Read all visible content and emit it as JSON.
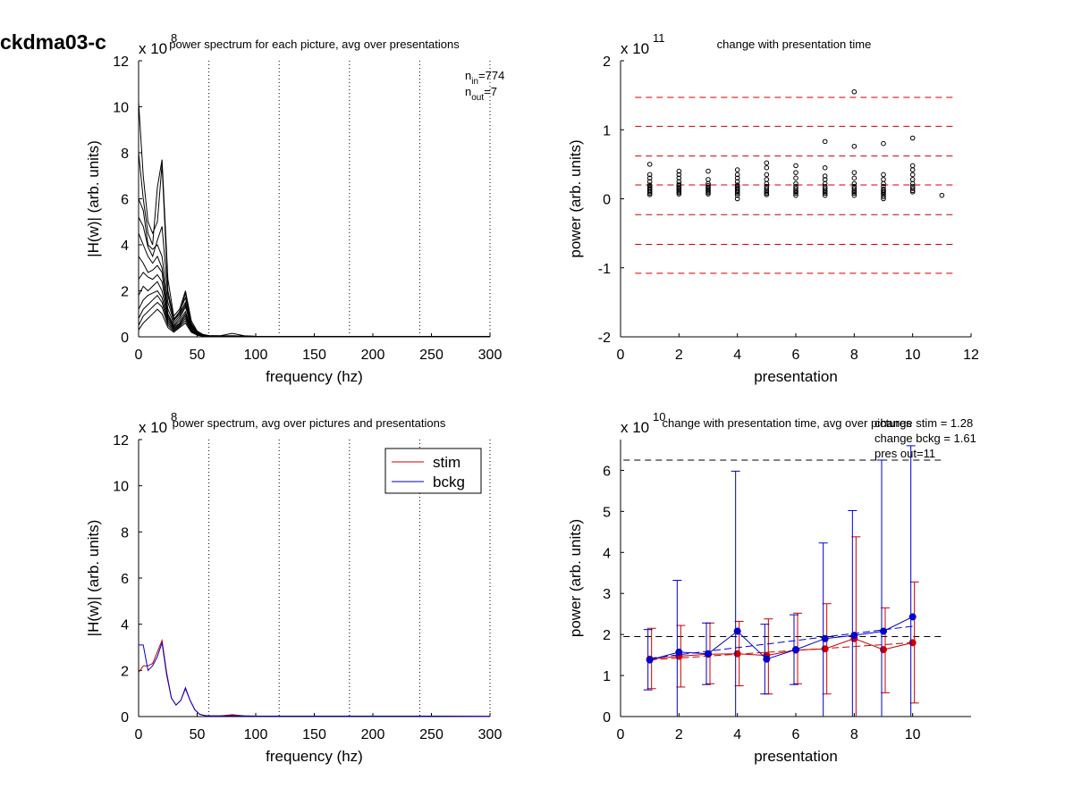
{
  "figure_title": "ckdma03-c",
  "colors": {
    "stim": "#cc0000",
    "bckg": "#0000cc",
    "black": "#000000",
    "dashed_red": "#cc0000"
  },
  "chart_data": [
    {
      "id": "p1",
      "type": "line",
      "title": "power spectrum for each picture, avg over presentations",
      "xlabel": "frequency (hz)",
      "ylabel": "|H(w)| (arb. units)",
      "xlim": [
        0,
        300
      ],
      "ylim": [
        0,
        12
      ],
      "xticks": [
        0,
        50,
        100,
        150,
        200,
        250,
        300
      ],
      "yticks": [
        0,
        2,
        4,
        6,
        8,
        10,
        12
      ],
      "exponent_base": "x 10",
      "exponent_power": "8",
      "vlines": [
        60,
        120,
        180,
        240,
        300
      ],
      "annotations": [
        {
          "main": "n",
          "sub": "in",
          "value": "=774"
        },
        {
          "main": "n",
          "sub": "out",
          "value": "=7"
        }
      ],
      "x": [
        0,
        4,
        8,
        12,
        16,
        20,
        25,
        30,
        35,
        40,
        45,
        50,
        55,
        60,
        70,
        80,
        90,
        100,
        150,
        200,
        250,
        300
      ],
      "series": [
        {
          "values": [
            10.2,
            7.0,
            5.0,
            4.5,
            5.0,
            7.5,
            2.0,
            0.8,
            1.0,
            1.9,
            0.6,
            0.2,
            0.1,
            0.05,
            0.05,
            0.15,
            0.05,
            0.02,
            0.02,
            0.02,
            0.02,
            0.01
          ]
        },
        {
          "values": [
            8.0,
            6.0,
            4.5,
            4.0,
            6.5,
            7.7,
            2.5,
            0.9,
            1.2,
            2.0,
            0.7,
            0.25,
            0.1,
            0.05,
            0.04,
            0.05,
            0.03,
            0.02,
            0.02,
            0.02,
            0.02,
            0.01
          ]
        },
        {
          "values": [
            6.0,
            5.5,
            4.0,
            3.8,
            4.0,
            3.5,
            1.5,
            0.7,
            1.0,
            1.5,
            0.5,
            0.2,
            0.08,
            0.05,
            0.04,
            0.04,
            0.03,
            0.02,
            0.02,
            0.02,
            0.02,
            0.01
          ]
        },
        {
          "values": [
            4.5,
            4.0,
            3.5,
            3.2,
            3.5,
            3.0,
            1.2,
            0.6,
            0.9,
            1.4,
            0.5,
            0.2,
            0.08,
            0.04,
            0.03,
            0.03,
            0.03,
            0.02,
            0.02,
            0.02,
            0.02,
            0.01
          ]
        },
        {
          "values": [
            3.5,
            3.2,
            2.8,
            2.9,
            3.1,
            2.8,
            1.0,
            0.5,
            0.8,
            1.3,
            0.45,
            0.18,
            0.07,
            0.04,
            0.03,
            0.03,
            0.02,
            0.02,
            0.02,
            0.02,
            0.02,
            0.01
          ]
        },
        {
          "values": [
            2.5,
            2.8,
            2.6,
            2.5,
            2.7,
            2.4,
            0.9,
            0.45,
            0.7,
            1.1,
            0.4,
            0.15,
            0.06,
            0.03,
            0.03,
            0.03,
            0.02,
            0.02,
            0.02,
            0.02,
            0.02,
            0.01
          ]
        },
        {
          "values": [
            1.8,
            2.2,
            2.0,
            2.2,
            2.4,
            2.0,
            0.8,
            0.4,
            0.6,
            1.0,
            0.35,
            0.12,
            0.05,
            0.03,
            0.03,
            0.02,
            0.02,
            0.02,
            0.02,
            0.02,
            0.02,
            0.01
          ]
        },
        {
          "values": [
            1.2,
            1.6,
            1.8,
            1.9,
            2.0,
            1.7,
            0.7,
            0.35,
            0.55,
            0.9,
            0.3,
            0.1,
            0.05,
            0.03,
            0.02,
            0.02,
            0.02,
            0.02,
            0.02,
            0.02,
            0.02,
            0.01
          ]
        },
        {
          "values": [
            0.8,
            1.2,
            1.4,
            1.6,
            1.8,
            1.5,
            0.6,
            0.3,
            0.5,
            0.8,
            0.28,
            0.1,
            0.04,
            0.02,
            0.02,
            0.02,
            0.02,
            0.02,
            0.02,
            0.02,
            0.02,
            0.01
          ]
        },
        {
          "values": [
            0.5,
            0.9,
            1.1,
            1.3,
            1.5,
            1.3,
            0.5,
            0.25,
            0.45,
            0.7,
            0.25,
            0.08,
            0.04,
            0.02,
            0.02,
            0.02,
            0.02,
            0.02,
            0.02,
            0.02,
            0.02,
            0.01
          ]
        },
        {
          "values": [
            0.3,
            0.6,
            0.8,
            1.0,
            1.2,
            1.0,
            0.4,
            0.2,
            0.4,
            0.6,
            0.2,
            0.07,
            0.03,
            0.02,
            0.02,
            0.02,
            0.02,
            0.02,
            0.02,
            0.02,
            0.02,
            0.01
          ]
        },
        {
          "values": [
            5.2,
            4.8,
            3.9,
            3.5,
            4.2,
            4.8,
            1.8,
            0.75,
            1.1,
            1.7,
            0.55,
            0.2,
            0.09,
            0.04,
            0.04,
            0.04,
            0.03,
            0.02,
            0.02,
            0.02,
            0.02,
            0.01
          ]
        }
      ]
    },
    {
      "id": "p2",
      "type": "scatter",
      "title": "change with presentation time",
      "xlabel": "presentation",
      "ylabel": "power (arb. units)",
      "xlim": [
        0,
        12
      ],
      "ylim": [
        -2,
        2
      ],
      "xticks": [
        0,
        2,
        4,
        6,
        8,
        10,
        12
      ],
      "yticks": [
        -2,
        -1,
        0,
        1,
        2
      ],
      "exponent_base": "x 10",
      "exponent_power": "11",
      "hlines_dashed": [
        1.47,
        1.05,
        0.62,
        0.2,
        -0.23,
        -0.66,
        -1.08
      ],
      "points": [
        {
          "x": 1,
          "y": [
            0.06,
            0.08,
            0.1,
            0.12,
            0.14,
            0.16,
            0.18,
            0.2,
            0.25,
            0.3,
            0.35,
            0.5
          ]
        },
        {
          "x": 2,
          "y": [
            0.07,
            0.09,
            0.11,
            0.13,
            0.15,
            0.17,
            0.19,
            0.21,
            0.25,
            0.3,
            0.35,
            0.4
          ]
        },
        {
          "x": 3,
          "y": [
            0.07,
            0.09,
            0.11,
            0.13,
            0.15,
            0.17,
            0.19,
            0.22,
            0.28,
            0.4
          ]
        },
        {
          "x": 4,
          "y": [
            0.0,
            0.05,
            0.08,
            0.1,
            0.12,
            0.14,
            0.16,
            0.18,
            0.2,
            0.25,
            0.3,
            0.35,
            0.42
          ]
        },
        {
          "x": 5,
          "y": [
            0.06,
            0.08,
            0.1,
            0.12,
            0.15,
            0.18,
            0.22,
            0.28,
            0.35,
            0.45,
            0.52
          ]
        },
        {
          "x": 6,
          "y": [
            0.05,
            0.08,
            0.1,
            0.12,
            0.15,
            0.18,
            0.22,
            0.3,
            0.38,
            0.48
          ]
        },
        {
          "x": 7,
          "y": [
            0.05,
            0.08,
            0.1,
            0.12,
            0.15,
            0.18,
            0.22,
            0.28,
            0.33,
            0.45,
            0.83
          ]
        },
        {
          "x": 8,
          "y": [
            0.05,
            0.08,
            0.1,
            0.12,
            0.15,
            0.18,
            0.22,
            0.3,
            0.38,
            0.76,
            1.55
          ]
        },
        {
          "x": 9,
          "y": [
            0.0,
            0.03,
            0.06,
            0.08,
            0.1,
            0.12,
            0.14,
            0.18,
            0.22,
            0.28,
            0.35,
            0.8
          ]
        },
        {
          "x": 10,
          "y": [
            0.1,
            0.12,
            0.15,
            0.18,
            0.22,
            0.28,
            0.35,
            0.42,
            0.48,
            0.88
          ]
        },
        {
          "x": 11,
          "y": [
            0.05
          ]
        }
      ]
    },
    {
      "id": "p3",
      "type": "line",
      "title": "power spectrum, avg over pictures and presentations",
      "xlabel": "frequency (hz)",
      "ylabel": "|H(w)| (arb. units)",
      "xlim": [
        0,
        300
      ],
      "ylim": [
        0,
        12
      ],
      "xticks": [
        0,
        50,
        100,
        150,
        200,
        250,
        300
      ],
      "yticks": [
        0,
        2,
        4,
        6,
        8,
        10,
        12
      ],
      "exponent_base": "x 10",
      "exponent_power": "8",
      "vlines": [
        60,
        120,
        180,
        240,
        300
      ],
      "legend": {
        "position": "top-right",
        "entries": [
          "stim",
          "bckg"
        ]
      },
      "x": [
        0,
        4,
        8,
        12,
        16,
        20,
        24,
        28,
        32,
        36,
        40,
        44,
        48,
        52,
        56,
        60,
        70,
        80,
        90,
        100,
        150,
        200,
        250,
        300
      ],
      "series": [
        {
          "name": "stim",
          "values": [
            1.9,
            2.2,
            2.2,
            2.3,
            2.8,
            3.3,
            1.9,
            0.8,
            0.5,
            0.7,
            1.2,
            0.7,
            0.3,
            0.1,
            0.05,
            0.03,
            0.03,
            0.08,
            0.03,
            0.02,
            0.02,
            0.02,
            0.02,
            0.01
          ]
        },
        {
          "name": "bckg",
          "values": [
            3.1,
            3.1,
            2.0,
            2.2,
            2.6,
            3.2,
            1.8,
            0.8,
            0.5,
            0.7,
            1.25,
            0.7,
            0.3,
            0.1,
            0.05,
            0.03,
            0.03,
            0.04,
            0.03,
            0.02,
            0.02,
            0.02,
            0.02,
            0.01
          ]
        }
      ]
    },
    {
      "id": "p4",
      "type": "line",
      "title": "change with presentation time, avg over pictures",
      "xlabel": "presentation",
      "ylabel": "power (arb. units)",
      "xlim": [
        0,
        12
      ],
      "ylim": [
        0,
        6.75
      ],
      "xaxis_end": 12,
      "xticks": [
        0,
        2,
        4,
        6,
        8,
        10
      ],
      "yticks": [
        0,
        1,
        2,
        3,
        4,
        5,
        6
      ],
      "exponent_base": "x 10",
      "exponent_power": "10",
      "annotations": [
        "change stim = 1.28",
        "change bckg = 1.61",
        "pres out=11"
      ],
      "hlines_dashed_black": [
        6.25,
        1.95
      ],
      "x": [
        1,
        2,
        3,
        4,
        5,
        6,
        7,
        8,
        9,
        10
      ],
      "series": [
        {
          "name": "stim",
          "values": [
            1.4,
            1.47,
            1.52,
            1.53,
            1.49,
            1.62,
            1.65,
            1.9,
            1.63,
            1.8
          ],
          "err_low": [
            0.68,
            0.72,
            0.8,
            0.75,
            0.55,
            0.8,
            0.55,
            0.0,
            0.58,
            0.33
          ],
          "err_high": [
            2.15,
            2.22,
            2.28,
            2.32,
            2.38,
            2.52,
            2.75,
            4.38,
            2.65,
            3.28
          ],
          "fit": [
            1.38,
            1.8
          ]
        },
        {
          "name": "bckg",
          "values": [
            1.38,
            1.57,
            1.53,
            2.08,
            1.4,
            1.63,
            1.9,
            1.98,
            2.08,
            2.43
          ],
          "err_low": [
            0.65,
            0.0,
            0.78,
            0.0,
            0.55,
            0.78,
            0.0,
            0.0,
            0.0,
            0.0
          ],
          "err_high": [
            2.12,
            3.32,
            2.28,
            5.98,
            2.25,
            2.48,
            4.23,
            5.02,
            6.25,
            6.6
          ],
          "fit": [
            1.42,
            2.2
          ]
        }
      ]
    }
  ]
}
